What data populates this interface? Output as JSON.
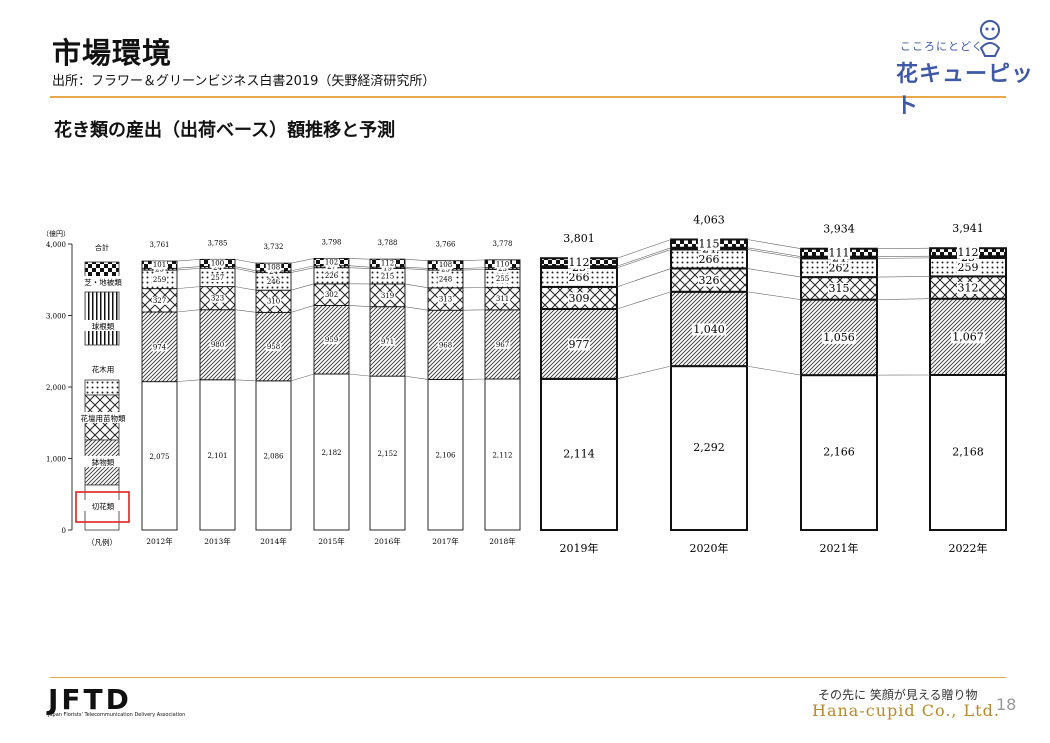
{
  "header": {
    "title": "市場環境",
    "source": "出所：フラワー＆グリーンビジネス白書2019（矢野経済研究所）",
    "logo_tagline": "こころにとどく",
    "logo_name": "花キューピット"
  },
  "subtitle": "花き類の産出（出荷ベース）額推移と予測",
  "footer": {
    "org_logo": "JFTD",
    "org_name": "Japan Florists' Telecommunication Delivery Association",
    "tagline": "その先に 笑顔が見える贈り物",
    "company": "Hana-cupid Co., Ltd.",
    "page": "18"
  },
  "colors": {
    "accent_rule": "#e8a94a",
    "brand_blue": "#3f59a6",
    "company_gold": "#b8892a",
    "highlight_box": "#e0201b"
  },
  "chart_data": {
    "type": "bar",
    "stacked": true,
    "unit_label": "（億円）",
    "ylim": [
      0,
      4000
    ],
    "y_ticks": [
      "4,000",
      "3,000",
      "2,000",
      "1,000",
      "0"
    ],
    "legend": {
      "title": "（凡例）",
      "total_label": "合計",
      "entries": [
        {
          "label": "芝・地被類",
          "pattern": "checker"
        },
        {
          "label": "球根類",
          "pattern": "vstripe"
        },
        {
          "label": "花木用",
          "pattern": "dots"
        },
        {
          "label": "花壇用苗物類",
          "pattern": "cross"
        },
        {
          "label": "鉢物類",
          "pattern": "hatch"
        },
        {
          "label": "切花類",
          "pattern": "white"
        }
      ]
    },
    "historical": {
      "categories": [
        "2012年",
        "2013年",
        "2014年",
        "2015年",
        "2016年",
        "2017年",
        "2018年"
      ],
      "totals": [
        "3,761",
        "3,785",
        "3,732",
        "3,798",
        "3,788",
        "3,766",
        "3,778"
      ],
      "series": [
        {
          "name": "切花類",
          "values": [
            2075,
            2101,
            2086,
            2182,
            2152,
            2106,
            2112
          ],
          "labels": [
            "2,075",
            "2,101",
            "2,086",
            "2,182",
            "2,152",
            "2,106",
            "2,112"
          ]
        },
        {
          "name": "鉢物類",
          "values": [
            974,
            980,
            958,
            959,
            971,
            968,
            967
          ],
          "labels": [
            "974",
            "980",
            "958",
            "959",
            "971",
            "968",
            "967"
          ]
        },
        {
          "name": "花壇用苗物類",
          "values": [
            327,
            323,
            310,
            302,
            319,
            313,
            311
          ],
          "labels": [
            "327",
            "323",
            "310",
            "302",
            "319",
            "313",
            "311"
          ]
        },
        {
          "name": "花木用",
          "values": [
            259,
            257,
            246,
            226,
            215,
            248,
            255
          ],
          "labels": [
            "259",
            "257",
            "246",
            "226",
            "215",
            "248",
            "255"
          ]
        },
        {
          "name": "球根類",
          "values": [
            25,
            24,
            24,
            27,
            19,
            23,
            23
          ],
          "labels": [
            "25",
            "24",
            "24",
            "27",
            "19",
            "23",
            "23"
          ]
        },
        {
          "name": "芝・地被類",
          "values": [
            101,
            100,
            108,
            102,
            112,
            108,
            110
          ],
          "labels": [
            "101",
            "100",
            "108",
            "102",
            "112",
            "108",
            "110"
          ]
        }
      ]
    },
    "forecast": {
      "categories": [
        "2019年",
        "2020年",
        "2021年",
        "2022年"
      ],
      "totals": [
        "3,801",
        "4,063",
        "3,934",
        "3,941"
      ],
      "series": [
        {
          "name": "切花類",
          "values": [
            2114,
            2292,
            2166,
            2168
          ],
          "labels": [
            "2,114",
            "2,292",
            "2,166",
            "2,168"
          ]
        },
        {
          "name": "鉢物類",
          "values": [
            977,
            1040,
            1056,
            1067
          ],
          "labels": [
            "977",
            "1,040",
            "1,056",
            "1,067"
          ]
        },
        {
          "name": "花壇用苗物類",
          "values": [
            309,
            326,
            315,
            312
          ],
          "labels": [
            "309",
            "326",
            "315",
            "312"
          ]
        },
        {
          "name": "花木用",
          "values": [
            266,
            266,
            262,
            259
          ],
          "labels": [
            "266",
            "266",
            "262",
            "259"
          ]
        },
        {
          "name": "球根類",
          "values": [
            23,
            24,
            24,
            23
          ],
          "labels": [
            "23",
            "24",
            "24",
            "23"
          ]
        },
        {
          "name": "芝・地被類",
          "values": [
            112,
            115,
            111,
            112
          ],
          "labels": [
            "112",
            "115",
            "111",
            "112"
          ]
        }
      ]
    }
  }
}
